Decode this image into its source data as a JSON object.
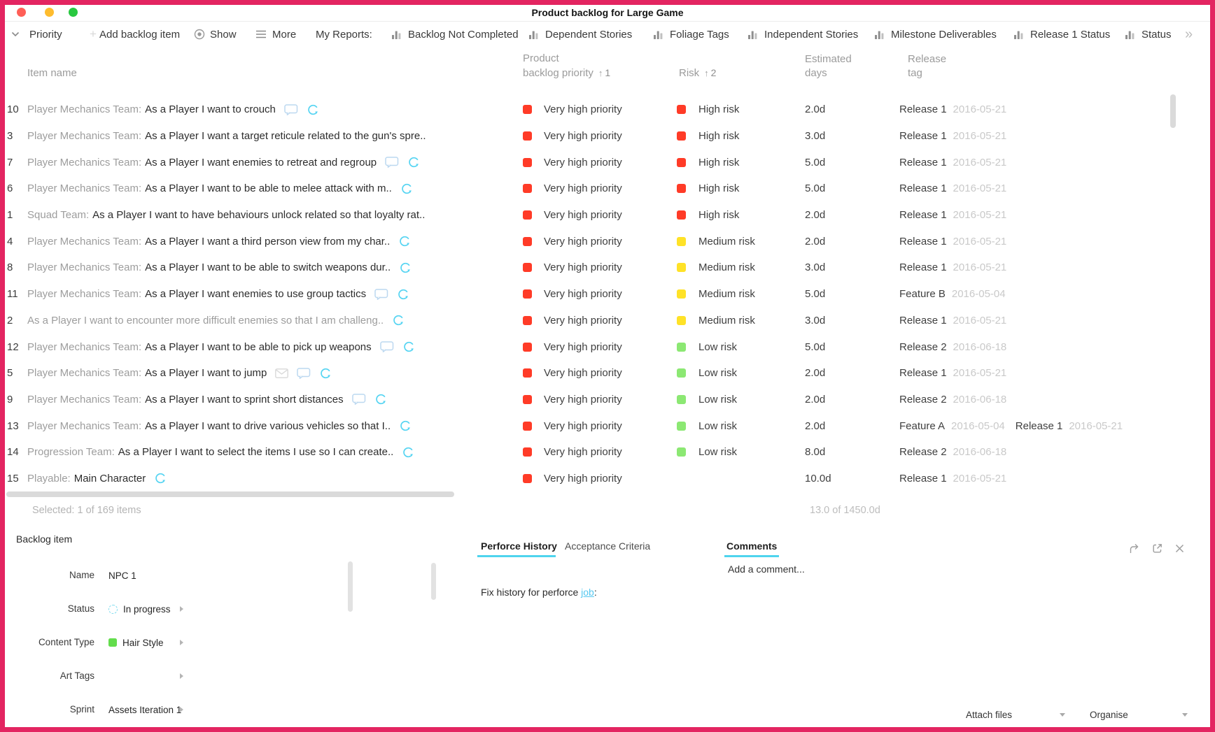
{
  "window": {
    "title": "Product backlog for Large Game"
  },
  "toolbar": {
    "priority_label": "Priority",
    "plus_glyph": "+",
    "add_item_label": "Add backlog item",
    "show_label": "Show",
    "more_label": "More",
    "my_reports_label": "My Reports:",
    "reports": [
      "Backlog Not Completed",
      "Dependent Stories",
      "Foliage Tags",
      "Independent Stories",
      "Milestone Deliverables",
      "Release 1 Status",
      "Status"
    ],
    "overflow_glyph": "»"
  },
  "table": {
    "headers": {
      "item": "Item name",
      "priority_line1": "Product",
      "priority_line2": "backlog priority",
      "priority_sort": "1",
      "risk": "Risk",
      "risk_sort": "2",
      "days_line1": "Estimated",
      "days_line2": "days",
      "tag_line1": "Release",
      "tag_line2": "tag",
      "sort_arrow": "↑"
    },
    "rows": [
      {
        "id": "10",
        "prefix": "Player Mechanics Team:",
        "title": "As a Player I want to crouch",
        "dimmed": false,
        "icons": [
          "comment",
          "spinner"
        ],
        "priority": "Very high priority",
        "risk": "High risk",
        "risk_level": "high",
        "days": "2.0d",
        "tags": [
          {
            "name": "Release 1",
            "date": "2016-05-21"
          }
        ]
      },
      {
        "id": "3",
        "prefix": "Player Mechanics Team:",
        "title": "As a Player I want a target reticule related to the gun's spre..",
        "dimmed": false,
        "icons": [],
        "priority": "Very high priority",
        "risk": "High risk",
        "risk_level": "high",
        "days": "3.0d",
        "tags": [
          {
            "name": "Release 1",
            "date": "2016-05-21"
          }
        ]
      },
      {
        "id": "7",
        "prefix": "Player Mechanics Team:",
        "title": "As a Player I want enemies to retreat and regroup",
        "dimmed": false,
        "icons": [
          "comment",
          "spinner"
        ],
        "priority": "Very high priority",
        "risk": "High risk",
        "risk_level": "high",
        "days": "5.0d",
        "tags": [
          {
            "name": "Release 1",
            "date": "2016-05-21"
          }
        ]
      },
      {
        "id": "6",
        "prefix": "Player Mechanics Team:",
        "title": "As a Player I want to be able to melee attack with m..",
        "dimmed": false,
        "icons": [
          "spinner"
        ],
        "priority": "Very high priority",
        "risk": "High risk",
        "risk_level": "high",
        "days": "5.0d",
        "tags": [
          {
            "name": "Release 1",
            "date": "2016-05-21"
          }
        ]
      },
      {
        "id": "1",
        "prefix": "Squad Team:",
        "title": "As a Player I want to have behaviours unlock related so that loyalty rat..",
        "dimmed": false,
        "icons": [],
        "priority": "Very high priority",
        "risk": "High risk",
        "risk_level": "high",
        "days": "2.0d",
        "tags": [
          {
            "name": "Release 1",
            "date": "2016-05-21"
          }
        ]
      },
      {
        "id": "4",
        "prefix": "Player Mechanics Team:",
        "title": "As a Player I want a third person view from my char..",
        "dimmed": false,
        "icons": [
          "spinner"
        ],
        "priority": "Very high priority",
        "risk": "Medium risk",
        "risk_level": "medium",
        "days": "2.0d",
        "tags": [
          {
            "name": "Release 1",
            "date": "2016-05-21"
          }
        ]
      },
      {
        "id": "8",
        "prefix": "Player Mechanics Team:",
        "title": "As a Player I want to be able to switch weapons dur..",
        "dimmed": false,
        "icons": [
          "spinner"
        ],
        "priority": "Very high priority",
        "risk": "Medium risk",
        "risk_level": "medium",
        "days": "3.0d",
        "tags": [
          {
            "name": "Release 1",
            "date": "2016-05-21"
          }
        ]
      },
      {
        "id": "11",
        "prefix": "Player Mechanics Team:",
        "title": "As a Player I want enemies to use group tactics",
        "dimmed": false,
        "icons": [
          "comment",
          "spinner"
        ],
        "priority": "Very high priority",
        "risk": "Medium risk",
        "risk_level": "medium",
        "days": "5.0d",
        "tags": [
          {
            "name": "Feature B",
            "date": "2016-05-04"
          }
        ]
      },
      {
        "id": "2",
        "prefix": "",
        "title": "As a Player I want to encounter more difficult enemies so that I am challeng..",
        "dimmed": true,
        "icons": [
          "spinner"
        ],
        "priority": "Very high priority",
        "risk": "Medium risk",
        "risk_level": "medium",
        "days": "3.0d",
        "tags": [
          {
            "name": "Release 1",
            "date": "2016-05-21"
          }
        ]
      },
      {
        "id": "12",
        "prefix": "Player Mechanics Team:",
        "title": "As a Player I want to be able to pick up weapons",
        "dimmed": false,
        "icons": [
          "comment",
          "spinner"
        ],
        "priority": "Very high priority",
        "risk": "Low risk",
        "risk_level": "low",
        "days": "5.0d",
        "tags": [
          {
            "name": "Release 2",
            "date": "2016-06-18"
          }
        ]
      },
      {
        "id": "5",
        "prefix": "Player Mechanics Team:",
        "title": "As a Player I want to jump",
        "dimmed": false,
        "icons": [
          "envelope",
          "comment",
          "spinner"
        ],
        "priority": "Very high priority",
        "risk": "Low risk",
        "risk_level": "low",
        "days": "2.0d",
        "tags": [
          {
            "name": "Release 1",
            "date": "2016-05-21"
          }
        ]
      },
      {
        "id": "9",
        "prefix": "Player Mechanics Team:",
        "title": "As a Player I want to sprint short distances",
        "dimmed": false,
        "icons": [
          "comment",
          "spinner"
        ],
        "priority": "Very high priority",
        "risk": "Low risk",
        "risk_level": "low",
        "days": "2.0d",
        "tags": [
          {
            "name": "Release 2",
            "date": "2016-06-18"
          }
        ]
      },
      {
        "id": "13",
        "prefix": "Player Mechanics Team:",
        "title": "As a Player I want to drive various vehicles so that I..",
        "dimmed": false,
        "icons": [
          "spinner"
        ],
        "priority": "Very high priority",
        "risk": "Low risk",
        "risk_level": "low",
        "days": "2.0d",
        "tags": [
          {
            "name": "Feature A",
            "date": "2016-05-04"
          },
          {
            "name": "Release 1",
            "date": "2016-05-21"
          }
        ]
      },
      {
        "id": "14",
        "prefix": "Progression Team:",
        "title": "As a Player I want to select the items I use so I can create..",
        "dimmed": false,
        "icons": [
          "spinner"
        ],
        "priority": "Very high priority",
        "risk": "Low risk",
        "risk_level": "low",
        "days": "8.0d",
        "tags": [
          {
            "name": "Release 2",
            "date": "2016-06-18"
          }
        ]
      },
      {
        "id": "15",
        "prefix": "Playable:",
        "title": "Main Character",
        "dimmed": false,
        "icons": [
          "spinner"
        ],
        "priority": "Very high priority",
        "risk": null,
        "risk_level": null,
        "days": "10.0d",
        "tags": [
          {
            "name": "Release 1",
            "date": "2016-05-21"
          }
        ]
      }
    ],
    "footer": {
      "selected": "Selected: 1 of 169 items",
      "days_total": "13.0 of 1450.0d"
    }
  },
  "panel": {
    "title": "Backlog item",
    "fields": [
      {
        "label": "Name",
        "value": "NPC 1",
        "icon": null,
        "chevron": false
      },
      {
        "label": "Status",
        "value": "In progress",
        "icon": "status-dashed-circle",
        "chevron": true
      },
      {
        "label": "Content Type",
        "value": "Hair Style",
        "icon": "green-square",
        "chevron": true
      },
      {
        "label": "Art Tags",
        "value": "",
        "icon": null,
        "chevron": true
      },
      {
        "label": "Sprint",
        "value": "Assets Iteration 1",
        "icon": null,
        "chevron": true
      }
    ],
    "tabs": [
      {
        "label": "Perforce History",
        "active": true
      },
      {
        "label": "Acceptance Criteria",
        "active": false
      }
    ],
    "comments_title": "Comments",
    "add_comment_placeholder": "Add a comment...",
    "history_prefix": "Fix history for perforce ",
    "history_link": "job",
    "history_suffix": ":",
    "attach_files_label": "Attach files",
    "organise_label": "Organise"
  },
  "colors": {
    "window_border": "#E32561",
    "priority_red": "#FF3B27",
    "risk_high": "#FF3B27",
    "risk_medium": "#FFE227",
    "risk_low": "#8CE873",
    "accent_cyan": "#4ED4EE",
    "icon_blue": "#BCD8F0",
    "spinner_cyan": "#55D4F2"
  }
}
